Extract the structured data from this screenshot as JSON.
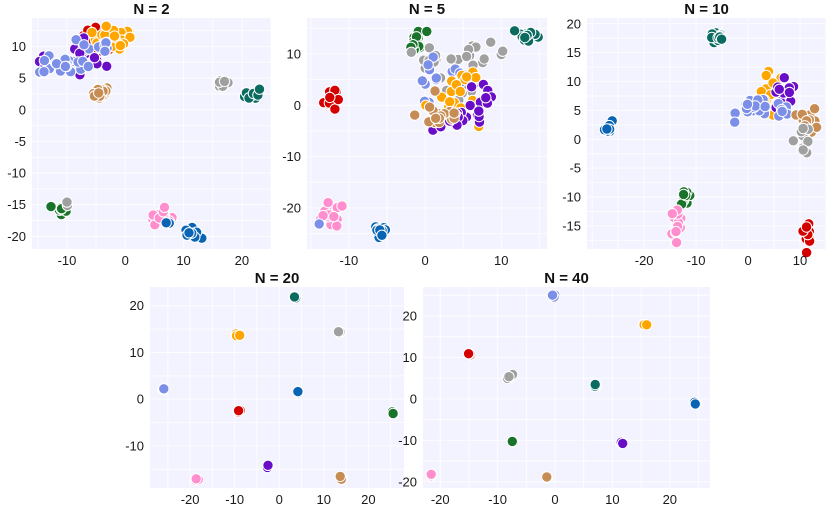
{
  "palette": {
    "red": "#d40000",
    "orange": "#ffa500",
    "purple": "#6a0dc7",
    "lavender": "#7b8ee8",
    "tan": "#c68c53",
    "gray": "#a0a0a0",
    "teal": "#0b6b60",
    "darkgreen": "#19732a",
    "pink": "#ff8ecf",
    "blue": "#0a64b4"
  },
  "chart_data": [
    {
      "type": "scatter",
      "title": "N = 2",
      "xlim": [
        -16,
        25
      ],
      "ylim": [
        -22,
        14.5
      ],
      "xticks": [
        -10,
        0,
        10,
        20
      ],
      "yticks": [
        -20,
        -15,
        -10,
        -5,
        0,
        5,
        10
      ],
      "clusters": [
        {
          "color": "red",
          "cx": -4.5,
          "cy": 11.2,
          "sx": 1.6,
          "sy": 0.9,
          "n": 40
        },
        {
          "color": "orange",
          "cx": -2.2,
          "cy": 11.2,
          "sx": 1.7,
          "sy": 0.8,
          "n": 35
        },
        {
          "color": "purple",
          "cx": -7.0,
          "cy": 8.0,
          "sx": 1.8,
          "sy": 2.0,
          "n": 18
        },
        {
          "color": "purple",
          "cx": -13.5,
          "cy": 7.5,
          "sx": 0.7,
          "sy": 0.5,
          "n": 5
        },
        {
          "color": "lavender",
          "cx": -10.5,
          "cy": 7.0,
          "sx": 2.2,
          "sy": 0.7,
          "n": 18
        },
        {
          "color": "lavender",
          "cx": -5.0,
          "cy": 10.0,
          "sx": 1.5,
          "sy": 1.0,
          "n": 10
        },
        {
          "color": "tan",
          "cx": -4.5,
          "cy": 2.7,
          "sx": 0.9,
          "sy": 0.5,
          "n": 18
        },
        {
          "color": "gray",
          "cx": 16.8,
          "cy": 4.2,
          "sx": 0.7,
          "sy": 0.4,
          "n": 14
        },
        {
          "color": "teal",
          "cx": 22.0,
          "cy": 2.5,
          "sx": 0.7,
          "sy": 0.5,
          "n": 10
        },
        {
          "color": "darkgreen",
          "cx": -11.0,
          "cy": -16.0,
          "sx": 0.5,
          "sy": 0.6,
          "n": 9
        },
        {
          "color": "gray",
          "cx": -10.2,
          "cy": -14.5,
          "sx": 0.3,
          "sy": 0.3,
          "n": 2
        },
        {
          "color": "pink",
          "cx": 6.0,
          "cy": -16.8,
          "sx": 0.9,
          "sy": 0.6,
          "n": 16
        },
        {
          "color": "blue",
          "cx": 11.5,
          "cy": -19.5,
          "sx": 0.6,
          "sy": 0.4,
          "n": 14
        },
        {
          "color": "blue",
          "cx": 7.0,
          "cy": -17.8,
          "sx": 0.3,
          "sy": 0.3,
          "n": 2
        }
      ]
    },
    {
      "type": "scatter",
      "title": "N = 5",
      "xlim": [
        -15.5,
        16
      ],
      "ylim": [
        -28,
        17
      ],
      "xticks": [
        -10,
        0,
        10
      ],
      "yticks": [
        -20,
        -10,
        0,
        10
      ],
      "clusters": [
        {
          "color": "red",
          "cx": -12.5,
          "cy": 1.5,
          "sx": 0.4,
          "sy": 1.4,
          "n": 14
        },
        {
          "color": "darkgreen",
          "cx": -1.0,
          "cy": 12.3,
          "sx": 0.6,
          "sy": 1.2,
          "n": 16
        },
        {
          "color": "gray",
          "cx": 0.5,
          "cy": 10.0,
          "sx": 0.8,
          "sy": 1.3,
          "n": 8
        },
        {
          "color": "gray",
          "cx": 7.0,
          "cy": 9.5,
          "sx": 1.8,
          "sy": 1.2,
          "n": 14
        },
        {
          "color": "gray",
          "cx": 4.5,
          "cy": 3.0,
          "sx": 1.6,
          "sy": 1.6,
          "n": 8
        },
        {
          "color": "teal",
          "cx": 13.5,
          "cy": 13.5,
          "sx": 1.0,
          "sy": 0.8,
          "n": 12
        },
        {
          "color": "lavender",
          "cx": 0.5,
          "cy": 5.0,
          "sx": 0.6,
          "sy": 2.0,
          "n": 10
        },
        {
          "color": "lavender",
          "cx": 5.0,
          "cy": 5.5,
          "sx": 1.6,
          "sy": 0.8,
          "n": 8
        },
        {
          "color": "orange",
          "cx": 3.0,
          "cy": 0.5,
          "sx": 1.8,
          "sy": 1.8,
          "n": 16
        },
        {
          "color": "orange",
          "cx": 6.0,
          "cy": 4.5,
          "sx": 1.0,
          "sy": 1.0,
          "n": 8
        },
        {
          "color": "purple",
          "cx": 5.0,
          "cy": -3.0,
          "sx": 2.0,
          "sy": 1.0,
          "n": 12
        },
        {
          "color": "purple",
          "cx": 7.5,
          "cy": 1.5,
          "sx": 1.0,
          "sy": 2.5,
          "n": 10
        },
        {
          "color": "tan",
          "cx": 2.0,
          "cy": -1.8,
          "sx": 1.6,
          "sy": 1.4,
          "n": 22
        },
        {
          "color": "pink",
          "cx": -12.5,
          "cy": -21.5,
          "sx": 1.0,
          "sy": 1.2,
          "n": 16
        },
        {
          "color": "lavender",
          "cx": -14.2,
          "cy": -23.0,
          "sx": 0.3,
          "sy": 0.3,
          "n": 2
        },
        {
          "color": "blue",
          "cx": -6.0,
          "cy": -25.0,
          "sx": 0.5,
          "sy": 0.9,
          "n": 12
        }
      ]
    },
    {
      "type": "scatter",
      "title": "N = 10",
      "xlim": [
        -31,
        15
      ],
      "ylim": [
        -19,
        21
      ],
      "xticks": [
        -20,
        -10,
        0,
        10
      ],
      "yticks": [
        -15,
        -10,
        -5,
        0,
        5,
        10,
        15,
        20
      ],
      "clusters": [
        {
          "color": "teal",
          "cx": -5.8,
          "cy": 17.5,
          "sx": 0.8,
          "sy": 0.5,
          "n": 12
        },
        {
          "color": "orange",
          "cx": 4.5,
          "cy": 7.5,
          "sx": 1.3,
          "sy": 2.0,
          "n": 14
        },
        {
          "color": "purple",
          "cx": 6.5,
          "cy": 7.0,
          "sx": 1.5,
          "sy": 1.5,
          "n": 12
        },
        {
          "color": "lavender",
          "cx": 1.5,
          "cy": 5.5,
          "sx": 1.8,
          "sy": 1.0,
          "n": 18
        },
        {
          "color": "lavender",
          "cx": 7.5,
          "cy": 5.0,
          "sx": 1.0,
          "sy": 1.0,
          "n": 5
        },
        {
          "color": "tan",
          "cx": 11.8,
          "cy": 3.0,
          "sx": 0.9,
          "sy": 1.2,
          "n": 14
        },
        {
          "color": "gray",
          "cx": 10.5,
          "cy": 0.0,
          "sx": 0.8,
          "sy": 1.3,
          "n": 12
        },
        {
          "color": "blue",
          "cx": -26.5,
          "cy": 2.0,
          "sx": 0.6,
          "sy": 0.5,
          "n": 8
        },
        {
          "color": "darkgreen",
          "cx": -12.0,
          "cy": -10.0,
          "sx": 0.6,
          "sy": 0.6,
          "n": 12
        },
        {
          "color": "pink",
          "cx": -13.8,
          "cy": -14.5,
          "sx": 0.6,
          "sy": 1.4,
          "n": 14
        },
        {
          "color": "red",
          "cx": 11.5,
          "cy": -16.0,
          "sx": 0.4,
          "sy": 0.9,
          "n": 10
        }
      ]
    },
    {
      "type": "scatter",
      "title": "N = 20",
      "xlim": [
        -29,
        28
      ],
      "ylim": [
        -19,
        24
      ],
      "xticks": [
        -20,
        -10,
        0,
        10,
        20
      ],
      "yticks": [
        -10,
        0,
        10,
        20
      ],
      "clusters": [
        {
          "color": "teal",
          "cx": 3.2,
          "cy": 22.0,
          "sx": 0.2,
          "sy": 0.2,
          "n": 3
        },
        {
          "color": "gray",
          "cx": 13.5,
          "cy": 14.2,
          "sx": 0.2,
          "sy": 0.2,
          "n": 3
        },
        {
          "color": "orange",
          "cx": -9.5,
          "cy": 13.5,
          "sx": 0.2,
          "sy": 0.2,
          "n": 3
        },
        {
          "color": "lavender",
          "cx": -26.0,
          "cy": 2.0,
          "sx": 0.2,
          "sy": 0.2,
          "n": 3
        },
        {
          "color": "blue",
          "cx": 4.0,
          "cy": 1.5,
          "sx": 0.2,
          "sy": 0.2,
          "n": 3
        },
        {
          "color": "red",
          "cx": -9.0,
          "cy": -2.5,
          "sx": 0.2,
          "sy": 0.2,
          "n": 3
        },
        {
          "color": "darkgreen",
          "cx": 25.5,
          "cy": -3.0,
          "sx": 0.2,
          "sy": 0.2,
          "n": 3
        },
        {
          "color": "purple",
          "cx": -2.5,
          "cy": -14.5,
          "sx": 0.2,
          "sy": 0.2,
          "n": 3
        },
        {
          "color": "pink",
          "cx": -18.5,
          "cy": -17.0,
          "sx": 0.2,
          "sy": 0.2,
          "n": 3
        },
        {
          "color": "tan",
          "cx": 14.0,
          "cy": -16.8,
          "sx": 0.2,
          "sy": 0.2,
          "n": 3
        }
      ]
    },
    {
      "type": "scatter",
      "title": "N = 40",
      "xlim": [
        -23,
        27
      ],
      "ylim": [
        -21.5,
        27
      ],
      "xticks": [
        -20,
        -10,
        0,
        10,
        20
      ],
      "yticks": [
        -20,
        -10,
        0,
        10,
        20
      ],
      "clusters": [
        {
          "color": "lavender",
          "cx": -0.3,
          "cy": 25.0,
          "sx": 0.2,
          "sy": 0.2,
          "n": 3
        },
        {
          "color": "orange",
          "cx": 15.5,
          "cy": 17.8,
          "sx": 0.2,
          "sy": 0.2,
          "n": 3
        },
        {
          "color": "red",
          "cx": -15.0,
          "cy": 10.8,
          "sx": 0.2,
          "sy": 0.2,
          "n": 3
        },
        {
          "color": "gray",
          "cx": -8.0,
          "cy": 5.3,
          "sx": 0.3,
          "sy": 0.3,
          "n": 4
        },
        {
          "color": "teal",
          "cx": 7.0,
          "cy": 3.2,
          "sx": 0.2,
          "sy": 0.2,
          "n": 3
        },
        {
          "color": "blue",
          "cx": 24.5,
          "cy": -1.0,
          "sx": 0.2,
          "sy": 0.2,
          "n": 3
        },
        {
          "color": "darkgreen",
          "cx": -7.5,
          "cy": -10.3,
          "sx": 0.2,
          "sy": 0.2,
          "n": 3
        },
        {
          "color": "purple",
          "cx": 11.5,
          "cy": -10.8,
          "sx": 0.2,
          "sy": 0.2,
          "n": 3
        },
        {
          "color": "pink",
          "cx": -21.5,
          "cy": -18.5,
          "sx": 0.2,
          "sy": 0.2,
          "n": 3
        },
        {
          "color": "tan",
          "cx": -1.5,
          "cy": -19.0,
          "sx": 0.2,
          "sy": 0.2,
          "n": 3
        }
      ]
    }
  ]
}
